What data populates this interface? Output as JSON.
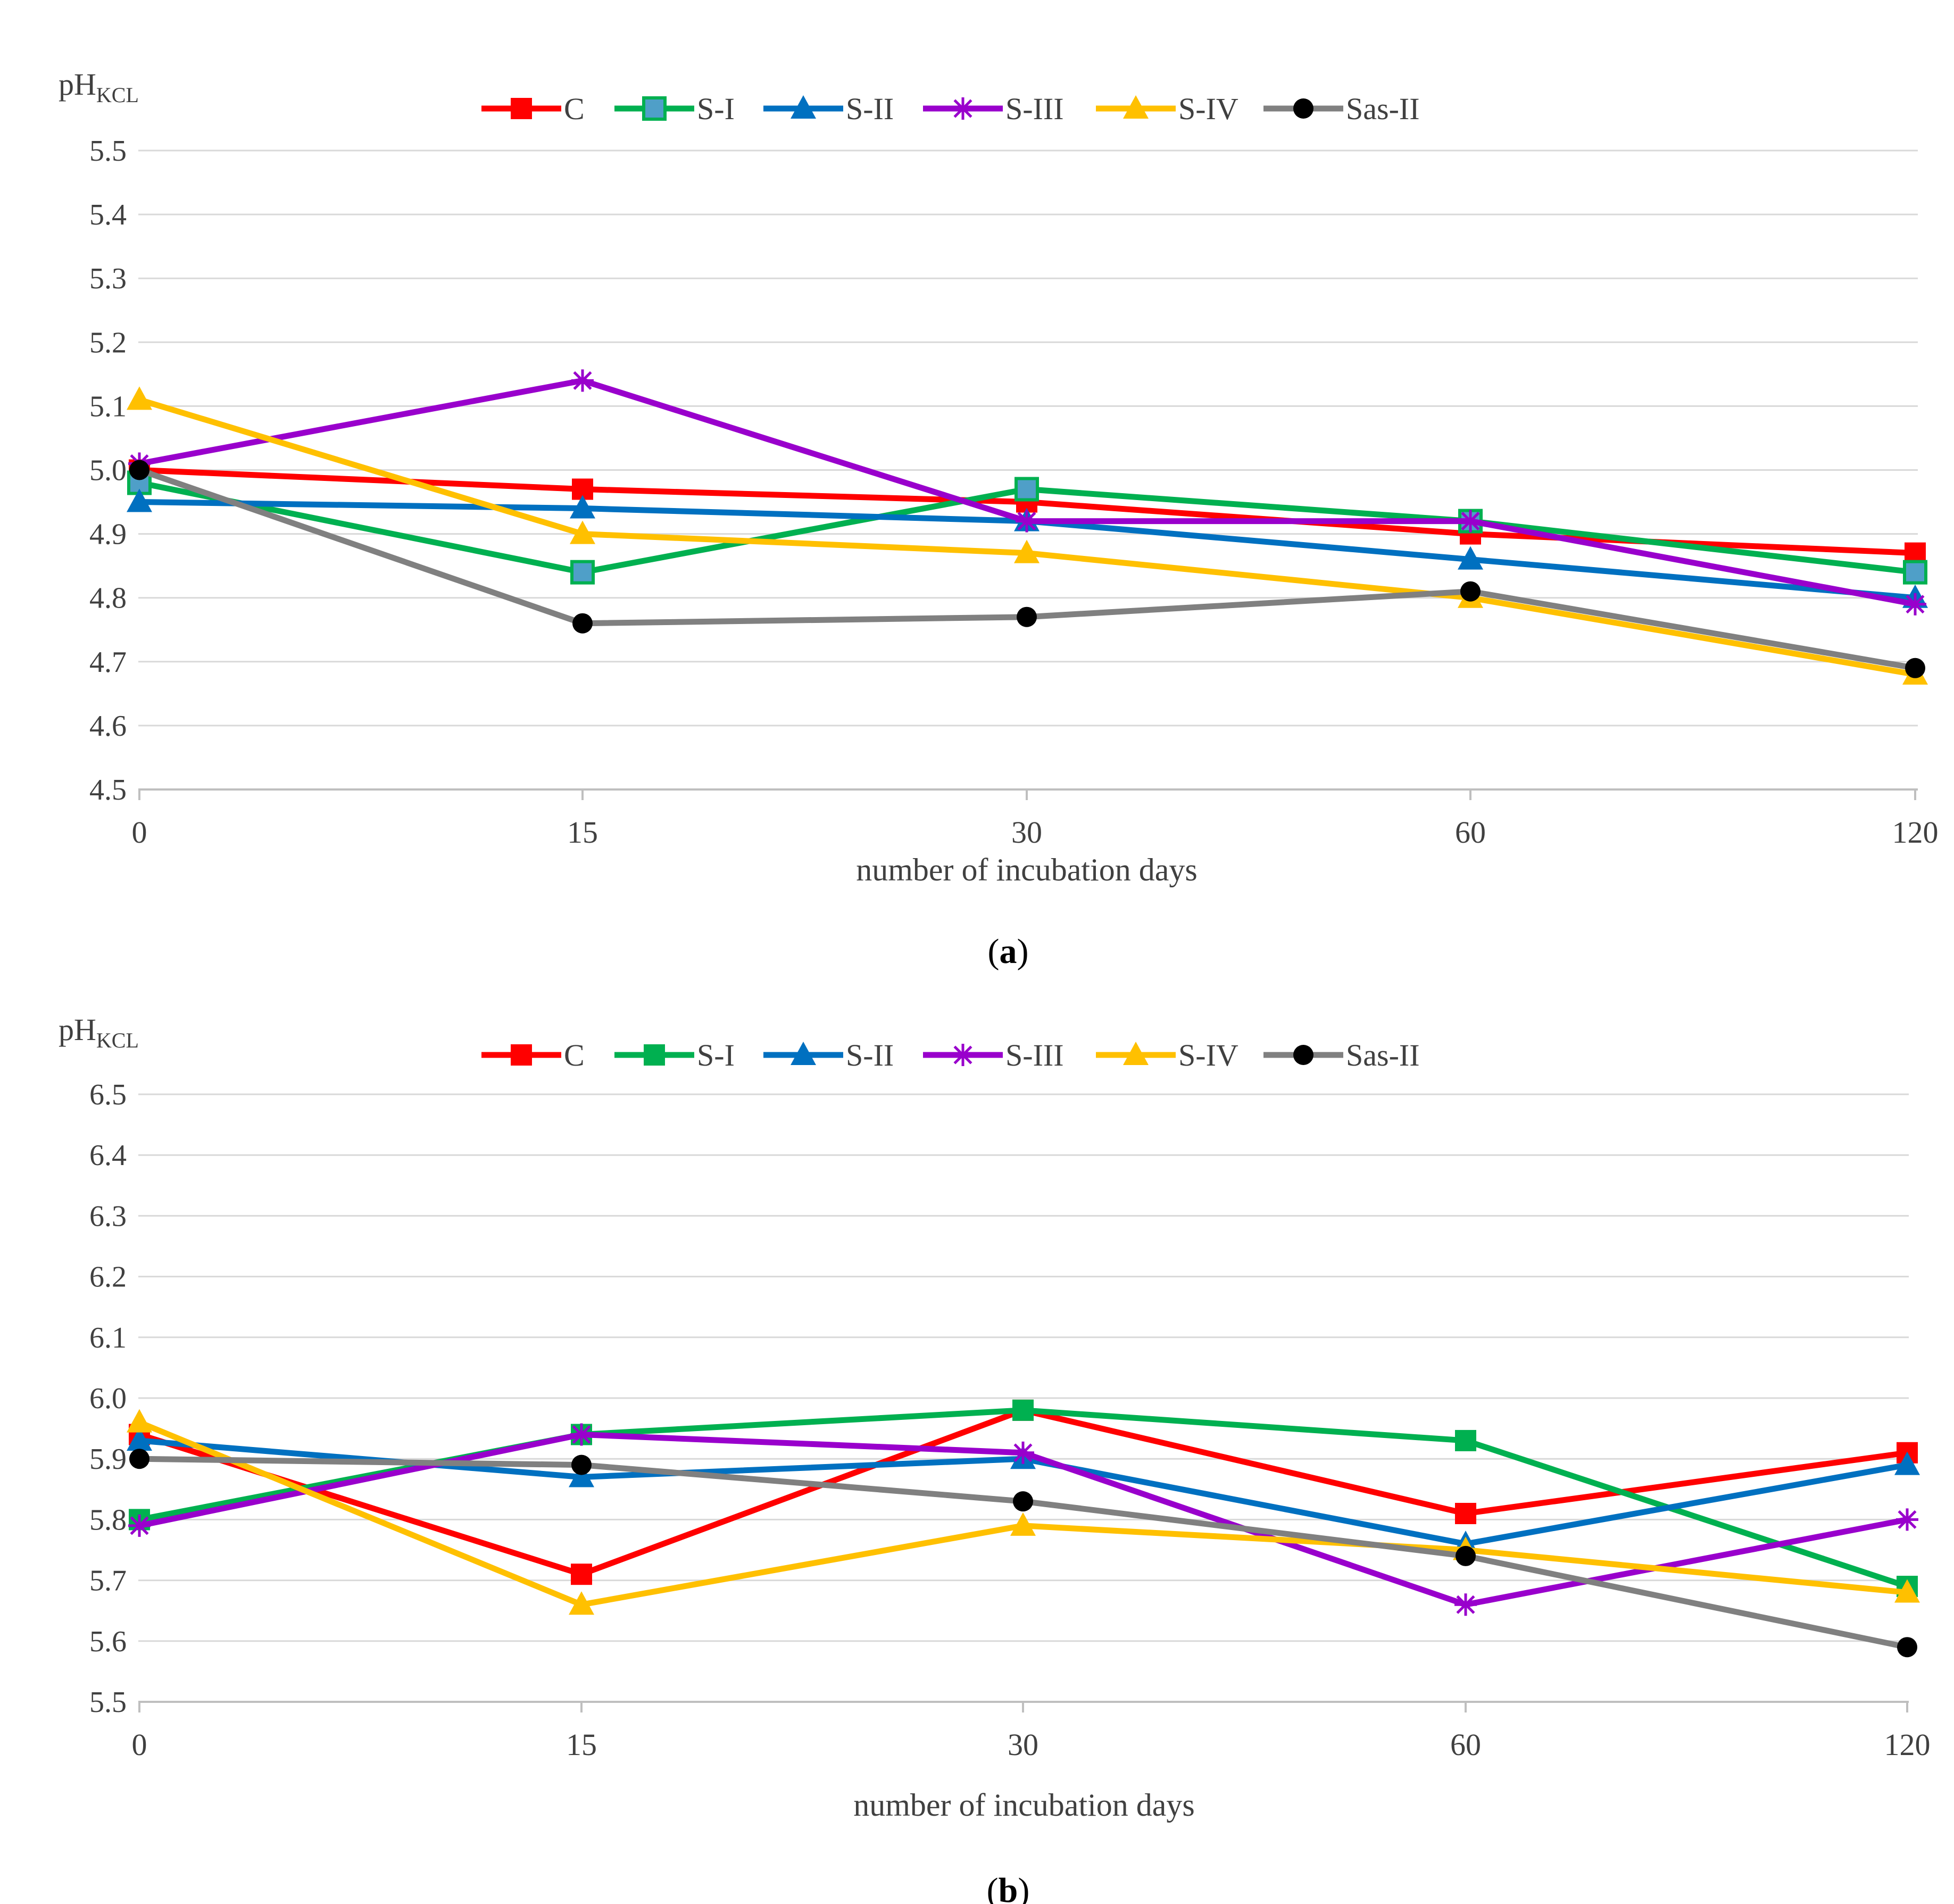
{
  "figure": {
    "colors": {
      "C": "#ff0000",
      "S-I": "#00b050",
      "S-I_marker_fill": "#4f9fc8",
      "S-II": "#0070c0",
      "S-III": "#9900cc",
      "S-IV": "#ffc000",
      "Sas-II": "#808080",
      "Sas-II_marker": "#000000",
      "grid": "#d9d9d9",
      "axis": "#bfbfbf",
      "text": "#404040"
    }
  },
  "chart_data": [
    {
      "type": "line",
      "panel_label": "a",
      "ylabel_main": "pH",
      "ylabel_sub": "KCL",
      "xlabel": "number of incubation  days",
      "categories": [
        "0",
        "15",
        "30",
        "60",
        "120"
      ],
      "ylim": [
        4.5,
        5.5
      ],
      "yticks": [
        "4.5",
        "4.6",
        "4.7",
        "4.8",
        "4.9",
        "5.0",
        "5.1",
        "5.2",
        "5.3",
        "5.4",
        "5.5"
      ],
      "grid": true,
      "legend_position": "top",
      "series": [
        {
          "name": "C",
          "marker": "square",
          "values": [
            5.0,
            4.97,
            4.95,
            4.9,
            4.87
          ]
        },
        {
          "name": "S-I",
          "marker": "square-hollow",
          "values": [
            4.98,
            4.84,
            4.97,
            4.92,
            4.84
          ]
        },
        {
          "name": "S-II",
          "marker": "triangle",
          "values": [
            4.95,
            4.94,
            4.92,
            4.86,
            4.8
          ]
        },
        {
          "name": "S-III",
          "marker": "star",
          "values": [
            5.01,
            5.14,
            4.92,
            4.92,
            4.79
          ]
        },
        {
          "name": "S-IV",
          "marker": "triangle",
          "values": [
            5.11,
            4.9,
            4.87,
            4.8,
            4.68
          ]
        },
        {
          "name": "Sas-II",
          "marker": "circle",
          "values": [
            5.0,
            4.76,
            4.77,
            4.81,
            4.69
          ]
        }
      ]
    },
    {
      "type": "line",
      "panel_label": "b",
      "ylabel_main": "pH",
      "ylabel_sub": "KCL",
      "xlabel": "number of incubation  days",
      "categories": [
        "0",
        "15",
        "30",
        "60",
        "120"
      ],
      "ylim": [
        5.5,
        6.5
      ],
      "yticks": [
        "5.5",
        "5.6",
        "5.7",
        "5.8",
        "5.9",
        "6.0",
        "6.1",
        "6.2",
        "6.3",
        "6.4",
        "6.5"
      ],
      "grid": true,
      "legend_position": "top",
      "series": [
        {
          "name": "C",
          "marker": "square",
          "values": [
            5.94,
            5.71,
            5.98,
            5.81,
            5.91
          ]
        },
        {
          "name": "S-I",
          "marker": "square",
          "values": [
            5.8,
            5.94,
            5.98,
            5.93,
            5.69
          ]
        },
        {
          "name": "S-II",
          "marker": "triangle",
          "values": [
            5.93,
            5.87,
            5.9,
            5.76,
            5.89
          ]
        },
        {
          "name": "S-III",
          "marker": "star",
          "values": [
            5.79,
            5.94,
            5.91,
            5.66,
            5.8
          ]
        },
        {
          "name": "S-IV",
          "marker": "triangle",
          "values": [
            5.96,
            5.66,
            5.79,
            5.75,
            5.68
          ]
        },
        {
          "name": "Sas-II",
          "marker": "circle",
          "values": [
            5.9,
            5.89,
            5.83,
            5.74,
            5.59
          ]
        }
      ]
    }
  ]
}
